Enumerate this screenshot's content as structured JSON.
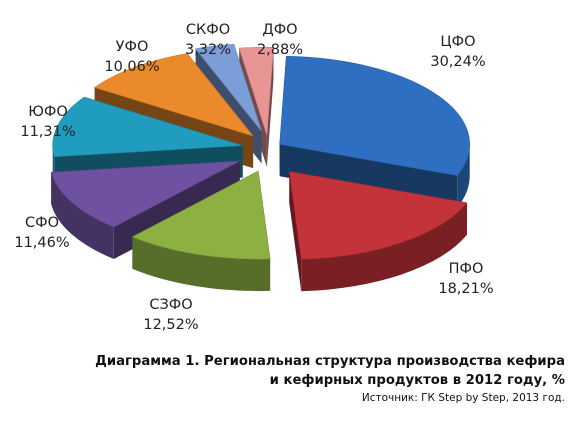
{
  "chart_data": {
    "type": "pie",
    "style": "3d-exploded",
    "categories": [
      "ЦФО",
      "ПФО",
      "СЗФО",
      "СФО",
      "ЮФО",
      "УФО",
      "СКФО",
      "ДФО"
    ],
    "values": [
      30.24,
      18.21,
      12.52,
      11.46,
      11.31,
      10.06,
      3.32,
      2.88
    ],
    "value_labels": [
      "30,24%",
      "18,21%",
      "12,52%",
      "11,46%",
      "11,31%",
      "10,06%",
      "3,32%",
      "2,88%"
    ],
    "colors": [
      "#2E6FC2",
      "#C4323A",
      "#8DB043",
      "#6E51A0",
      "#1F9CBE",
      "#EB8A2A",
      "#7B9ED9",
      "#E89595"
    ],
    "legend": "none"
  },
  "caption": {
    "line1": "Диаграмма 1. Региональная структура производства кефира",
    "line2": "и кефирных продуктов  в 2012 году, %",
    "source": "Источник: ГК Step by Step, 2013 год."
  }
}
